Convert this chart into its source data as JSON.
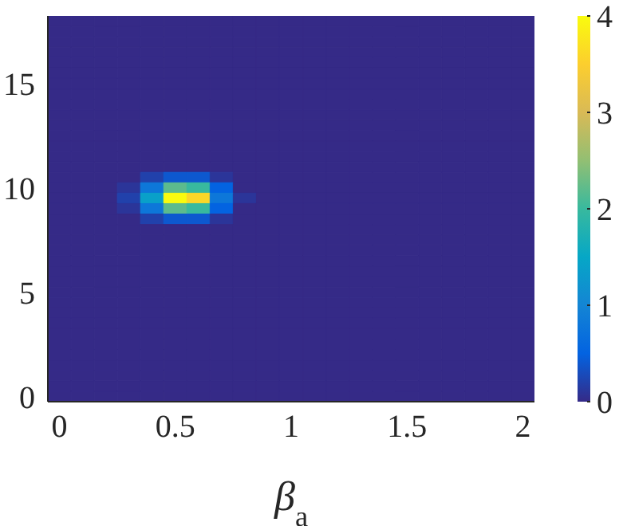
{
  "chart_data": {
    "type": "heatmap",
    "xlabel": "β$_{a}$",
    "categories": [
      "0",
      null,
      null,
      null,
      null,
      "0.5",
      null,
      null,
      null,
      null,
      "1",
      null,
      null,
      null,
      null,
      "1.5",
      null,
      null,
      null,
      null,
      "2"
    ],
    "y_categories": [
      null,
      null,
      null,
      null,
      null,
      null,
      "15",
      null,
      null,
      null,
      null,
      null,
      null,
      null,
      null,
      null,
      "10",
      null,
      null,
      null,
      null,
      null,
      null,
      null,
      null,
      null,
      "5",
      null,
      null,
      null,
      null,
      null,
      null,
      null,
      null,
      null,
      "0"
    ],
    "clim": [
      0,
      4
    ],
    "cticks": [
      0,
      1,
      2,
      3,
      4
    ],
    "cells": [
      [
        0,
        0,
        0,
        0,
        0,
        0,
        0,
        0,
        0,
        0,
        0,
        0,
        0,
        0,
        0,
        0,
        0,
        0,
        0,
        0,
        0
      ],
      [
        0,
        0,
        0,
        0,
        0,
        0,
        0,
        0,
        0,
        0,
        0,
        0,
        0,
        0,
        0,
        0,
        0,
        0,
        0,
        0,
        0
      ],
      [
        0,
        0,
        0,
        0,
        0,
        0,
        0,
        0,
        0,
        0,
        0,
        0,
        0,
        0,
        0,
        0,
        0,
        0,
        0,
        0,
        0
      ],
      [
        0,
        0,
        0,
        0,
        0,
        0,
        0,
        0,
        0,
        0,
        0,
        0,
        0,
        0,
        0,
        0,
        0,
        0,
        0,
        0,
        0
      ],
      [
        0,
        0,
        0,
        0,
        0,
        0,
        0,
        0,
        0,
        0,
        0,
        0,
        0,
        0,
        0,
        0,
        0,
        0,
        0,
        0,
        0
      ],
      [
        0,
        0,
        0,
        0,
        0,
        0,
        0,
        0,
        0,
        0,
        0,
        0,
        0,
        0,
        0,
        0,
        0,
        0,
        0,
        0,
        0
      ],
      [
        0,
        0,
        0,
        0,
        0,
        0,
        0,
        0,
        0,
        0,
        0,
        0,
        0,
        0,
        0,
        0,
        0,
        0,
        0,
        0,
        0
      ],
      [
        0,
        0,
        0,
        0,
        0,
        0,
        0,
        0,
        0,
        0,
        0,
        0,
        0,
        0,
        0,
        0,
        0,
        0,
        0,
        0,
        0
      ],
      [
        0,
        0,
        0,
        0,
        0,
        0,
        0,
        0,
        0,
        0,
        0,
        0,
        0,
        0,
        0,
        0,
        0,
        0,
        0,
        0,
        0
      ],
      [
        0,
        0,
        0,
        0,
        0,
        0,
        0,
        0,
        0,
        0,
        0,
        0,
        0,
        0,
        0,
        0,
        0,
        0,
        0,
        0,
        0
      ],
      [
        0,
        0,
        0,
        0,
        0,
        0,
        0,
        0,
        0,
        0,
        0,
        0,
        0,
        0,
        0,
        0,
        0,
        0,
        0,
        0,
        0
      ],
      [
        0,
        0,
        0,
        0,
        0,
        0,
        0,
        0,
        0,
        0,
        0,
        0,
        0,
        0,
        0,
        0,
        0,
        0,
        0,
        0,
        0
      ],
      [
        0,
        0,
        0,
        0,
        0,
        0,
        0,
        0,
        0,
        0,
        0,
        0,
        0,
        0,
        0,
        0,
        0,
        0,
        0,
        0,
        0
      ],
      [
        0,
        0,
        0,
        0,
        0,
        0,
        0,
        0,
        0,
        0,
        0,
        0,
        0,
        0,
        0,
        0,
        0,
        0,
        0,
        0,
        0
      ],
      [
        0,
        0,
        0,
        0,
        0,
        0,
        0,
        0,
        0,
        0,
        0,
        0,
        0,
        0,
        0,
        0,
        0,
        0,
        0,
        0,
        0
      ],
      [
        0,
        0,
        0,
        0,
        0.2,
        0.4,
        0.4,
        0.1,
        0,
        0,
        0,
        0,
        0,
        0,
        0,
        0,
        0,
        0,
        0,
        0,
        0
      ],
      [
        0,
        0,
        0,
        0.1,
        0.8,
        2.2,
        2,
        0.5,
        0,
        0,
        0,
        0,
        0,
        0,
        0,
        0,
        0,
        0,
        0,
        0,
        0
      ],
      [
        0,
        0,
        0,
        0.2,
        1.4,
        4,
        3.6,
        0.8,
        0.1,
        0,
        0,
        0,
        0,
        0,
        0,
        0,
        0,
        0,
        0,
        0,
        0
      ],
      [
        0,
        0,
        0,
        0.1,
        0.8,
        2.2,
        2,
        0.5,
        0,
        0,
        0,
        0,
        0,
        0,
        0,
        0,
        0,
        0,
        0,
        0,
        0
      ],
      [
        0,
        0,
        0,
        0,
        0.2,
        0.4,
        0.4,
        0.1,
        0,
        0,
        0,
        0,
        0,
        0,
        0,
        0,
        0,
        0,
        0,
        0,
        0
      ],
      [
        0,
        0,
        0,
        0,
        0,
        0,
        0,
        0,
        0,
        0,
        0,
        0,
        0,
        0,
        0,
        0,
        0,
        0,
        0,
        0,
        0
      ],
      [
        0,
        0,
        0,
        0,
        0,
        0,
        0,
        0,
        0,
        0,
        0,
        0,
        0,
        0,
        0,
        0,
        0,
        0,
        0,
        0,
        0
      ],
      [
        0,
        0,
        0,
        0,
        0,
        0,
        0,
        0,
        0,
        0,
        0,
        0,
        0,
        0,
        0,
        0,
        0,
        0,
        0,
        0,
        0
      ],
      [
        0,
        0,
        0,
        0,
        0,
        0,
        0,
        0,
        0,
        0,
        0,
        0,
        0,
        0,
        0,
        0,
        0,
        0,
        0,
        0,
        0
      ],
      [
        0,
        0,
        0,
        0,
        0,
        0,
        0,
        0,
        0,
        0,
        0,
        0,
        0,
        0,
        0,
        0,
        0,
        0,
        0,
        0,
        0
      ],
      [
        0,
        0,
        0,
        0,
        0,
        0,
        0,
        0,
        0,
        0,
        0,
        0,
        0,
        0,
        0,
        0,
        0,
        0,
        0,
        0,
        0
      ],
      [
        0,
        0,
        0,
        0,
        0,
        0,
        0,
        0,
        0,
        0,
        0,
        0,
        0,
        0,
        0,
        0,
        0,
        0,
        0,
        0,
        0
      ],
      [
        0,
        0,
        0,
        0,
        0,
        0,
        0,
        0,
        0,
        0,
        0,
        0,
        0,
        0,
        0,
        0,
        0,
        0,
        0,
        0,
        0
      ],
      [
        0,
        0,
        0,
        0,
        0,
        0,
        0,
        0,
        0,
        0,
        0,
        0,
        0,
        0,
        0,
        0,
        0,
        0,
        0,
        0,
        0
      ],
      [
        0,
        0,
        0,
        0,
        0,
        0,
        0,
        0,
        0,
        0,
        0,
        0,
        0,
        0,
        0,
        0,
        0,
        0,
        0,
        0,
        0
      ],
      [
        0,
        0,
        0,
        0,
        0,
        0,
        0,
        0,
        0,
        0,
        0,
        0,
        0,
        0,
        0,
        0,
        0,
        0,
        0,
        0,
        0
      ],
      [
        0,
        0,
        0,
        0,
        0,
        0,
        0,
        0,
        0,
        0,
        0,
        0,
        0,
        0,
        0,
        0,
        0,
        0,
        0,
        0,
        0
      ],
      [
        0,
        0,
        0,
        0,
        0,
        0,
        0,
        0,
        0,
        0,
        0,
        0,
        0,
        0,
        0,
        0,
        0,
        0,
        0,
        0,
        0
      ],
      [
        0,
        0,
        0,
        0,
        0,
        0,
        0,
        0,
        0,
        0,
        0,
        0,
        0,
        0,
        0,
        0,
        0,
        0,
        0,
        0,
        0
      ],
      [
        0,
        0,
        0,
        0,
        0,
        0,
        0,
        0,
        0,
        0,
        0,
        0,
        0,
        0,
        0,
        0,
        0,
        0,
        0,
        0,
        0
      ],
      [
        0,
        0,
        0,
        0,
        0,
        0,
        0,
        0,
        0,
        0,
        0,
        0,
        0,
        0,
        0,
        0,
        0,
        0,
        0,
        0,
        0
      ],
      [
        0,
        0,
        0,
        0,
        0,
        0,
        0,
        0,
        0,
        0,
        0,
        0,
        0,
        0,
        0,
        0,
        0,
        0,
        0,
        0,
        0
      ]
    ]
  }
}
